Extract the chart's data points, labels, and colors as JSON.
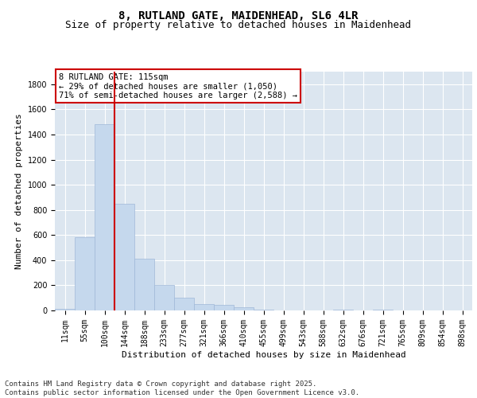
{
  "title_line1": "8, RUTLAND GATE, MAIDENHEAD, SL6 4LR",
  "title_line2": "Size of property relative to detached houses in Maidenhead",
  "xlabel": "Distribution of detached houses by size in Maidenhead",
  "ylabel": "Number of detached properties",
  "categories": [
    "11sqm",
    "55sqm",
    "100sqm",
    "144sqm",
    "188sqm",
    "233sqm",
    "277sqm",
    "321sqm",
    "366sqm",
    "410sqm",
    "455sqm",
    "499sqm",
    "543sqm",
    "588sqm",
    "632sqm",
    "676sqm",
    "721sqm",
    "765sqm",
    "809sqm",
    "854sqm",
    "898sqm"
  ],
  "values": [
    10,
    580,
    1480,
    850,
    410,
    200,
    100,
    50,
    45,
    25,
    5,
    0,
    0,
    0,
    5,
    0,
    5,
    0,
    0,
    0,
    0
  ],
  "bar_color": "#c5d8ed",
  "bar_edge_color": "#a0b8d8",
  "vline_color": "#cc0000",
  "vline_position": 2.5,
  "annotation_text": "8 RUTLAND GATE: 115sqm\n← 29% of detached houses are smaller (1,050)\n71% of semi-detached houses are larger (2,588) →",
  "annotation_box_color": "#ffffff",
  "annotation_box_edge": "#cc0000",
  "ylim": [
    0,
    1900
  ],
  "yticks": [
    0,
    200,
    400,
    600,
    800,
    1000,
    1200,
    1400,
    1600,
    1800
  ],
  "background_color": "#dce6f0",
  "footer_text": "Contains HM Land Registry data © Crown copyright and database right 2025.\nContains public sector information licensed under the Open Government Licence v3.0.",
  "title_fontsize": 10,
  "subtitle_fontsize": 9,
  "axis_label_fontsize": 8,
  "tick_fontsize": 7,
  "annotation_fontsize": 7.5,
  "footer_fontsize": 6.5
}
